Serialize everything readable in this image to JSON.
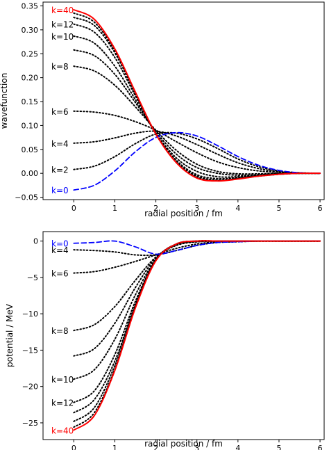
{
  "chart_data": [
    {
      "type": "line",
      "xlabel": "radial position / fm",
      "ylabel": "wavefunction",
      "xlim": [
        -0.75,
        6.1
      ],
      "ylim": [
        -0.055,
        0.358
      ],
      "xticks": [
        0,
        1,
        2,
        3,
        4,
        5,
        6
      ],
      "yticks": [
        -0.05,
        0.0,
        0.05,
        0.1,
        0.15,
        0.2,
        0.25,
        0.3,
        0.35
      ],
      "ytick_labels": [
        "−0.05",
        "0.00",
        "0.05",
        "0.10",
        "0.15",
        "0.20",
        "0.25",
        "0.30",
        "0.35"
      ],
      "grid": false,
      "series": [
        {
          "name": "k=0",
          "style": "dashed",
          "color": "#0000ff",
          "x": [
            0,
            0.5,
            1,
            1.5,
            2,
            2.5,
            3,
            3.5,
            4,
            4.5,
            5,
            5.5,
            6
          ],
          "y": [
            -0.035,
            -0.025,
            0.005,
            0.045,
            0.075,
            0.085,
            0.078,
            0.058,
            0.035,
            0.017,
            0.006,
            0.001,
            0.0
          ]
        },
        {
          "name": "k=2",
          "style": "dotted",
          "color": "#000000",
          "x": [
            0,
            0.5,
            1,
            1.5,
            2,
            2.5,
            3,
            3.5,
            4,
            4.5,
            5,
            5.5,
            6
          ],
          "y": [
            0.008,
            0.015,
            0.035,
            0.062,
            0.082,
            0.084,
            0.072,
            0.052,
            0.03,
            0.014,
            0.005,
            0.001,
            0.0
          ]
        },
        {
          "name": "k=4",
          "style": "dotted",
          "color": "#000000",
          "x": [
            0,
            0.5,
            1,
            1.5,
            2,
            2.5,
            3,
            3.5,
            4,
            4.5,
            5,
            5.5,
            6
          ],
          "y": [
            0.063,
            0.066,
            0.074,
            0.084,
            0.088,
            0.078,
            0.06,
            0.04,
            0.022,
            0.01,
            0.003,
            0.001,
            0.0
          ]
        },
        {
          "name": "k=6",
          "style": "dotted",
          "color": "#000000",
          "x": [
            0,
            0.5,
            1,
            1.5,
            2,
            2.5,
            3,
            3.5,
            4,
            4.5,
            5,
            5.5,
            6
          ],
          "y": [
            0.13,
            0.128,
            0.121,
            0.108,
            0.09,
            0.066,
            0.043,
            0.024,
            0.012,
            0.005,
            0.002,
            0.0,
            0.0
          ]
        },
        {
          "name": "k=8",
          "style": "dotted",
          "color": "#000000",
          "x": [
            0,
            0.5,
            1,
            1.5,
            2,
            2.5,
            3,
            3.5,
            4,
            4.5,
            5,
            5.5,
            6
          ],
          "y": [
            0.224,
            0.214,
            0.184,
            0.139,
            0.09,
            0.048,
            0.019,
            0.004,
            -0.001,
            -0.001,
            0.0,
            0.0,
            0.0
          ]
        },
        {
          "name": "k=10",
          "style": "dotted",
          "color": "#000000",
          "x": [
            0,
            0.5,
            1,
            1.5,
            2,
            2.5,
            3,
            3.5,
            4,
            4.5,
            5,
            5.5,
            6
          ],
          "y": [
            0.287,
            0.272,
            0.224,
            0.154,
            0.084,
            0.032,
            0.004,
            -0.007,
            -0.007,
            -0.004,
            -0.001,
            0.0,
            0.0
          ]
        },
        {
          "name": "k=12",
          "style": "dotted",
          "color": "#000000",
          "x": [
            0,
            0.5,
            1,
            1.5,
            2,
            2.5,
            3,
            3.5,
            4,
            4.5,
            5,
            5.5,
            6
          ],
          "y": [
            0.312,
            0.295,
            0.242,
            0.162,
            0.083,
            0.027,
            -0.003,
            -0.011,
            -0.009,
            -0.005,
            -0.002,
            0.0,
            0.0
          ]
        },
        {
          "name": "k=40",
          "style": "solid",
          "color": "#ff0000",
          "x": [
            0,
            0.5,
            1,
            1.5,
            2,
            2.5,
            3,
            3.5,
            4,
            4.5,
            5,
            5.5,
            6
          ],
          "y": [
            0.342,
            0.322,
            0.26,
            0.17,
            0.082,
            0.022,
            -0.01,
            -0.016,
            -0.012,
            -0.006,
            -0.002,
            0.0,
            0.0
          ]
        }
      ],
      "extra_dotted_series": [
        {
          "x": [
            0,
            0.5,
            1,
            1.5,
            2,
            2.5,
            3,
            3.5,
            4,
            4.5,
            5,
            5.5,
            6
          ],
          "y": [
            0.326,
            0.309,
            0.252,
            0.166,
            0.082,
            0.024,
            -0.006,
            -0.014,
            -0.011,
            -0.006,
            -0.002,
            0.0,
            0.0
          ]
        },
        {
          "x": [
            0,
            0.5,
            1,
            1.5,
            2,
            2.5,
            3,
            3.5,
            4,
            4.5,
            5,
            5.5,
            6
          ],
          "y": [
            0.335,
            0.316,
            0.256,
            0.168,
            0.082,
            0.023,
            -0.008,
            -0.015,
            -0.011,
            -0.006,
            -0.002,
            0.0,
            0.0
          ]
        },
        {
          "x": [
            0,
            0.5,
            1,
            1.5,
            2,
            2.5,
            3,
            3.5,
            4,
            4.5,
            5,
            5.5,
            6
          ],
          "y": [
            0.258,
            0.246,
            0.207,
            0.148,
            0.087,
            0.04,
            0.012,
            0.0,
            -0.004,
            -0.003,
            -0.001,
            0.0,
            0.0
          ]
        }
      ]
    },
    {
      "type": "line",
      "xlabel": "radial position / fm",
      "ylabel": "potential / MeV",
      "xlim": [
        -0.75,
        6.1
      ],
      "ylim": [
        -27.3,
        1.3
      ],
      "xticks": [
        0,
        1,
        2,
        3,
        4,
        5,
        6
      ],
      "yticks": [
        0,
        -5,
        -10,
        -15,
        -20,
        -25
      ],
      "ytick_labels": [
        "0",
        "−5",
        "−10",
        "−15",
        "−20",
        "−25"
      ],
      "grid": false,
      "series": [
        {
          "name": "k=0",
          "style": "dashed",
          "color": "#0000ff",
          "x": [
            0,
            0.5,
            1,
            1.5,
            2,
            2.5,
            3,
            3.5,
            4,
            4.5,
            5,
            5.5,
            6
          ],
          "y": [
            -0.3,
            -0.2,
            0.0,
            -0.8,
            -1.8,
            -1.3,
            -0.6,
            -0.2,
            -0.1,
            0.0,
            0.0,
            0.0,
            0.0
          ]
        },
        {
          "name": "k=4",
          "style": "dotted",
          "color": "#000000",
          "x": [
            0,
            0.5,
            1,
            1.5,
            2,
            2.5,
            3,
            3.5,
            4,
            4.5,
            5,
            5.5,
            6
          ],
          "y": [
            -1.2,
            -1.3,
            -1.5,
            -1.9,
            -1.9,
            -1.3,
            -0.6,
            -0.2,
            -0.1,
            0.0,
            0.0,
            0.0,
            0.0
          ]
        },
        {
          "name": "k=6",
          "style": "dotted",
          "color": "#000000",
          "x": [
            0,
            0.5,
            1,
            1.5,
            2,
            2.5,
            3,
            3.5,
            4,
            4.5,
            5,
            5.5,
            6
          ],
          "y": [
            -4.4,
            -4.2,
            -3.6,
            -2.8,
            -1.9,
            -1.0,
            -0.4,
            -0.1,
            0.0,
            0.0,
            0.0,
            0.0,
            0.0
          ]
        },
        {
          "name": "k=8",
          "style": "dotted",
          "color": "#000000",
          "x": [
            0,
            0.5,
            1,
            1.5,
            2,
            2.5,
            3,
            3.5,
            4,
            4.5,
            5,
            5.5,
            6
          ],
          "y": [
            -12.3,
            -11.5,
            -9.0,
            -5.4,
            -2.2,
            -0.6,
            -0.1,
            0.0,
            0.0,
            0.0,
            0.0,
            0.0,
            0.0
          ]
        },
        {
          "name": "k=10",
          "style": "dotted",
          "color": "#000000",
          "x": [
            0,
            0.5,
            1,
            1.5,
            2,
            2.5,
            3,
            3.5,
            4,
            4.5,
            5,
            5.5,
            6
          ],
          "y": [
            -19.0,
            -17.7,
            -13.5,
            -7.4,
            -2.5,
            -0.5,
            -0.1,
            0.0,
            0.0,
            0.0,
            0.0,
            0.0,
            0.0
          ]
        },
        {
          "name": "k=12",
          "style": "dotted",
          "color": "#000000",
          "x": [
            0,
            0.5,
            1,
            1.5,
            2,
            2.5,
            3,
            3.5,
            4,
            4.5,
            5,
            5.5,
            6
          ],
          "y": [
            -22.2,
            -20.6,
            -15.6,
            -8.3,
            -2.6,
            -0.5,
            0.0,
            0.0,
            0.0,
            0.0,
            0.0,
            0.0,
            0.0
          ]
        },
        {
          "name": "k=40",
          "style": "solid",
          "color": "#ff0000",
          "x": [
            0,
            0.5,
            1,
            1.5,
            2,
            2.5,
            3,
            3.5,
            4,
            4.5,
            5,
            5.5,
            6
          ],
          "y": [
            -26.0,
            -24.0,
            -17.8,
            -9.2,
            -2.7,
            -0.4,
            0.0,
            0.0,
            0.0,
            0.0,
            0.0,
            0.0,
            0.0
          ]
        }
      ],
      "extra_dotted_series": [
        {
          "x": [
            0,
            0.5,
            1,
            1.5,
            2,
            2.5,
            3,
            3.5,
            4,
            4.5,
            5,
            5.5,
            6
          ],
          "y": [
            -15.8,
            -14.8,
            -11.3,
            -6.4,
            -2.3,
            -0.5,
            -0.1,
            0.0,
            0.0,
            0.0,
            0.0,
            0.0,
            0.0
          ]
        },
        {
          "x": [
            0,
            0.5,
            1,
            1.5,
            2,
            2.5,
            3,
            3.5,
            4,
            4.5,
            5,
            5.5,
            6
          ],
          "y": [
            -23.6,
            -21.8,
            -16.5,
            -8.7,
            -2.6,
            -0.4,
            0.0,
            0.0,
            0.0,
            0.0,
            0.0,
            0.0,
            0.0
          ]
        },
        {
          "x": [
            0,
            0.5,
            1,
            1.5,
            2,
            2.5,
            3,
            3.5,
            4,
            4.5,
            5,
            5.5,
            6
          ],
          "y": [
            -24.8,
            -22.9,
            -17.1,
            -9.0,
            -2.6,
            -0.4,
            0.0,
            0.0,
            0.0,
            0.0,
            0.0,
            0.0,
            0.0
          ]
        },
        {
          "x": [
            0,
            0.5,
            1,
            1.5,
            2,
            2.5,
            3,
            3.5,
            4,
            4.5,
            5,
            5.5,
            6
          ],
          "y": [
            -25.6,
            -23.6,
            -17.6,
            -9.1,
            -2.7,
            -0.4,
            0.0,
            0.0,
            0.0,
            0.0,
            0.0,
            0.0,
            0.0
          ]
        }
      ]
    }
  ]
}
